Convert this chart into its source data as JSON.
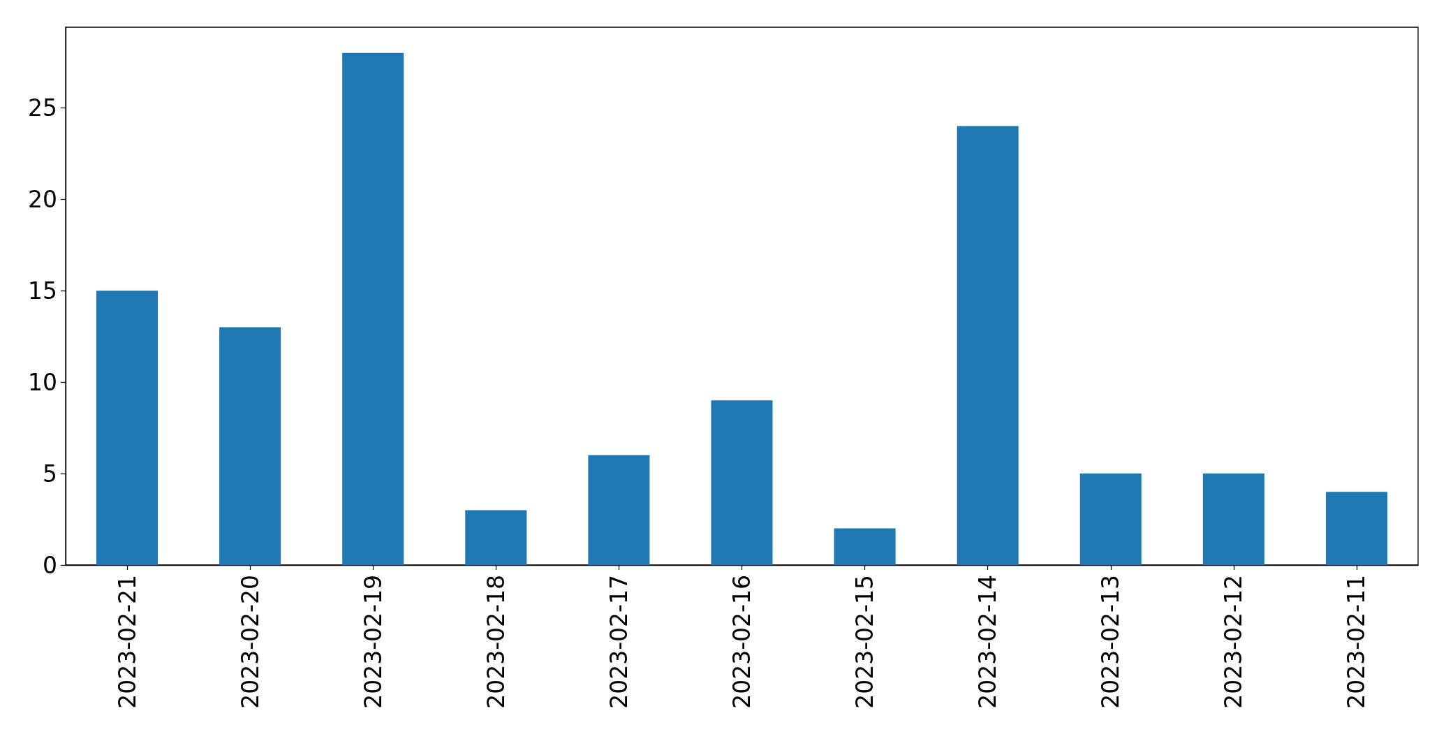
{
  "chart_data": {
    "type": "bar",
    "categories": [
      "2023-02-21",
      "2023-02-20",
      "2023-02-19",
      "2023-02-18",
      "2023-02-17",
      "2023-02-16",
      "2023-02-15",
      "2023-02-14",
      "2023-02-13",
      "2023-02-12",
      "2023-02-11"
    ],
    "values": [
      15,
      13,
      28,
      3,
      6,
      9,
      2,
      24,
      5,
      5,
      4
    ],
    "color": "#1f77b4",
    "ylim": [
      0,
      29.4
    ],
    "yticks": [
      0,
      5,
      10,
      15,
      20,
      25
    ]
  }
}
